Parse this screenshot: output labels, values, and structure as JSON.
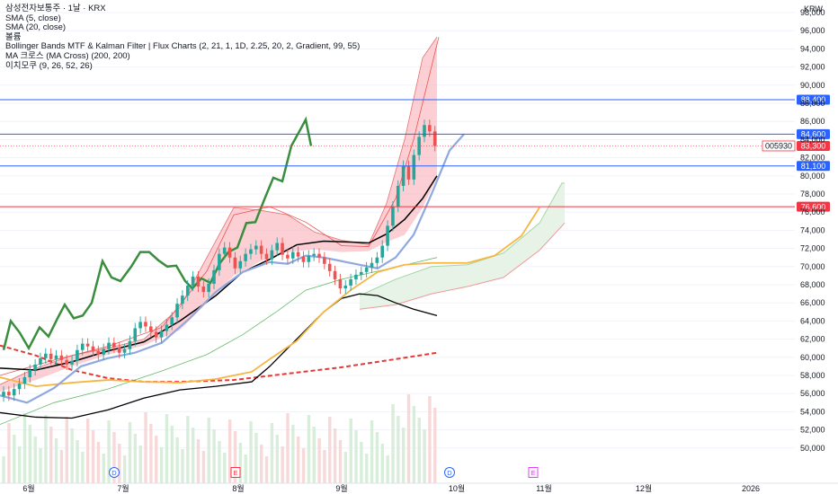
{
  "legend": {
    "title": "삼성전자보통주 · 1날 · KRX",
    "sma5": "SMA (5, close)",
    "sma20": "SMA (20, close)",
    "bollinger": "볼륨",
    "flux": "Bollinger Bands MTF & Kalman Filter | Flux Charts (2, 21, 1, 1D, 2.25, 20, 2, Gradient, 99, 55)",
    "ma_cross": "MA 크로스 (MA Cross) (200, 200)",
    "ichimoku": "이치모쿠 (9, 26, 52, 26)"
  },
  "currency": "KRW",
  "colors": {
    "up_candle": "#26a69a",
    "down_candle": "#ef5350",
    "band_fill": "#f7a8b0",
    "kalman_green": "#388e3c",
    "sma_blue": "#8fa8e0",
    "orange_ma": "#f5b642",
    "red_dash": "#e53935",
    "black_line": "#000000",
    "hline_blue": "#2962ff",
    "hline_red": "#f23645",
    "cloud_fill": "#e6f3e6"
  },
  "chart_data": {
    "type": "candlestick",
    "y_range": [
      48000,
      98000
    ],
    "y_ticks": [
      "98,000",
      "96,000",
      "94,000",
      "92,000",
      "90,000",
      "88,000",
      "86,000",
      "84,000",
      "82,000",
      "80,000",
      "78,000",
      "76,000",
      "74,000",
      "72,000",
      "70,000",
      "68,000",
      "66,000",
      "64,000",
      "62,000",
      "60,000",
      "58,000",
      "56,000",
      "54,000",
      "52,000",
      "50,000"
    ],
    "x_ticks": [
      "6월",
      "7월",
      "8월",
      "9월",
      "10월",
      "11월",
      "12월",
      "2026"
    ],
    "horizontal_levels": [
      {
        "value": 88400,
        "label": "88,400",
        "color": "#2962ff"
      },
      {
        "value": 84600,
        "label": "84,600",
        "color": "#2962ff"
      },
      {
        "value": 81100,
        "label": "81,100",
        "color": "#2962ff"
      },
      {
        "value": 76600,
        "label": "76,600",
        "color": "#f23645"
      }
    ],
    "last_price": {
      "symbol": "005930",
      "value": 83300,
      "label": "83,300"
    },
    "events": [
      {
        "label": "D",
        "position": "6월",
        "color": "#2962ff"
      },
      {
        "label": "E",
        "position": "8월",
        "color": "#f23645"
      },
      {
        "label": "D",
        "position": "10월",
        "color": "#2962ff"
      },
      {
        "label": "E",
        "position": "11월",
        "color": "#e040fb"
      }
    ],
    "candle_closes": [
      56200,
      55800,
      56500,
      57100,
      57800,
      58600,
      59200,
      59900,
      60400,
      59800,
      60200,
      59700,
      59200,
      59600,
      60800,
      61500,
      61200,
      60700,
      60300,
      60900,
      61600,
      61100,
      60500,
      60900,
      61800,
      63200,
      63900,
      63400,
      62800,
      62200,
      62900,
      63600,
      64400,
      65900,
      66800,
      67900,
      68900,
      67800,
      67200,
      68100,
      69600,
      71400,
      72100,
      71000,
      69800,
      70600,
      71400,
      71900,
      72300,
      71400,
      70800,
      71800,
      72600,
      71300,
      70900,
      71600,
      71100,
      70500,
      71200,
      71400,
      71000,
      70300,
      69500,
      68600,
      67600,
      67900,
      68600,
      69100,
      69400,
      69900,
      70400,
      71000,
      72300,
      74500,
      76600,
      78900,
      81100,
      79600,
      82300,
      84300,
      85600,
      84900,
      83300
    ]
  }
}
